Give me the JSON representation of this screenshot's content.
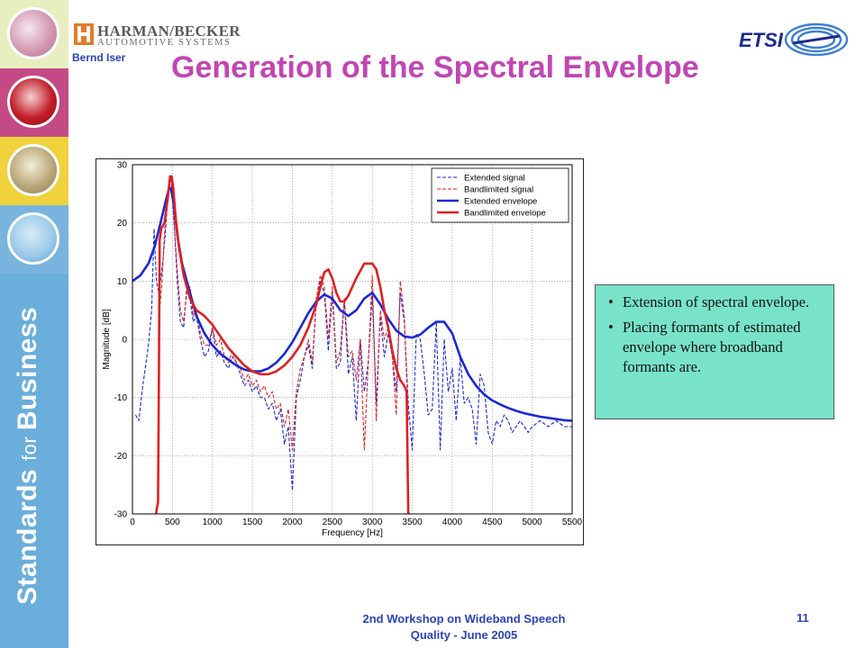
{
  "header": {
    "company_name": "HARMAN/BECKER",
    "company_sub": "AUTOMOTIVE SYSTEMS",
    "author": "Bernd Iser",
    "logo_letter": "H",
    "etsi_text": "ETSI"
  },
  "slide": {
    "title": "Generation of the Spectral Envelope",
    "sidebar_text_a": "Standards ",
    "sidebar_text_b": "for ",
    "sidebar_text_c": "Business"
  },
  "bullets": [
    "Extension of spectral envelope.",
    "Placing formants of estimated envelope where broadband formants are."
  ],
  "footer": {
    "line1": "2nd Workshop on Wideband Speech",
    "line2": "Quality - June 2005",
    "page_number": "11"
  },
  "colors": {
    "title": "#c146b3",
    "footer": "#2a43b8",
    "extended": "#1a28d4",
    "bandlimited": "#e02020",
    "textbox_bg": "#78e3c8"
  },
  "chart_data": {
    "type": "line",
    "title": "",
    "xlabel": "Frequency [Hz]",
    "ylabel": "Magnitude [dB]",
    "xlim": [
      0,
      5500
    ],
    "ylim": [
      -30,
      30
    ],
    "xticks": [
      0,
      500,
      1000,
      1500,
      2000,
      2500,
      3000,
      3500,
      4000,
      4500,
      5000,
      5500
    ],
    "yticks": [
      -30,
      -20,
      -10,
      0,
      10,
      20,
      30
    ],
    "grid": true,
    "legend_position": "top-right",
    "series": [
      {
        "name": "Extended signal",
        "style": "dashed",
        "color": "#1a28d4",
        "x": [
          40,
          80,
          120,
          160,
          200,
          240,
          270,
          300,
          330,
          370,
          410,
          450,
          480,
          500,
          530,
          560,
          600,
          640,
          680,
          720,
          760,
          800,
          850,
          900,
          950,
          1000,
          1050,
          1100,
          1150,
          1200,
          1250,
          1300,
          1350,
          1400,
          1450,
          1500,
          1550,
          1600,
          1650,
          1700,
          1750,
          1800,
          1850,
          1900,
          1950,
          2000,
          2050,
          2100,
          2150,
          2200,
          2250,
          2300,
          2350,
          2400,
          2450,
          2500,
          2550,
          2600,
          2650,
          2700,
          2750,
          2800,
          2850,
          2900,
          2950,
          3000,
          3050,
          3100,
          3150,
          3200,
          3250,
          3300,
          3350,
          3400,
          3450,
          3500,
          3550,
          3600,
          3650,
          3700,
          3750,
          3800,
          3850,
          3900,
          3950,
          4000,
          4050,
          4100,
          4150,
          4200,
          4250,
          4300,
          4350,
          4400,
          4450,
          4500,
          4550,
          4600,
          4650,
          4700,
          4750,
          4800,
          4850,
          4900,
          4950,
          5000,
          5100,
          5200,
          5300,
          5400,
          5500
        ],
        "y": [
          -13,
          -14,
          -9,
          -5,
          -1,
          5,
          19,
          10,
          8,
          12,
          18,
          26,
          28,
          24,
          18,
          10,
          3,
          2,
          9,
          7,
          3,
          4,
          0,
          -3,
          -2,
          2,
          -3,
          -2,
          -4,
          -5,
          -3,
          -4,
          -6,
          -8,
          -7,
          -9,
          -8,
          -10,
          -10,
          -12,
          -11,
          -14,
          -12,
          -18,
          -15,
          -26,
          -10,
          -7,
          -3,
          -1,
          -5,
          7,
          10,
          8,
          -2,
          8,
          -5,
          -4,
          7,
          -6,
          -3,
          -14,
          0,
          -9,
          -4,
          8,
          -11,
          4,
          -3,
          1,
          -3,
          -9,
          8,
          3,
          -11,
          -19,
          1,
          0,
          -6,
          -13,
          -12,
          3,
          -19,
          0,
          -9,
          -5,
          -14,
          -3,
          -11,
          -10,
          -12,
          -18,
          -6,
          -8,
          -16,
          -18,
          -14,
          -15,
          -13,
          -14,
          -16,
          -15,
          -14,
          -15,
          -16,
          -15,
          -14,
          -15,
          -14,
          -15,
          -15
        ]
      },
      {
        "name": "Bandlimited signal",
        "style": "dashed",
        "color": "#e02020",
        "x": [
          320,
          340,
          370,
          400,
          430,
          460,
          480,
          500,
          530,
          560,
          600,
          640,
          680,
          720,
          760,
          800,
          850,
          900,
          950,
          1000,
          1050,
          1100,
          1150,
          1200,
          1250,
          1300,
          1350,
          1400,
          1450,
          1500,
          1550,
          1600,
          1650,
          1700,
          1750,
          1800,
          1850,
          1900,
          1950,
          2000,
          2050,
          2100,
          2150,
          2200,
          2250,
          2300,
          2350,
          2400,
          2450,
          2500,
          2550,
          2600,
          2650,
          2700,
          2750,
          2800,
          2850,
          2900,
          2950,
          3000,
          3050,
          3100,
          3150,
          3200,
          3250,
          3300,
          3350,
          3400,
          3450
        ],
        "y": [
          -20,
          5,
          10,
          18,
          23,
          26,
          28,
          26,
          18,
          12,
          5,
          3,
          8,
          9,
          4,
          5,
          1,
          -1,
          -1,
          2,
          -1,
          0,
          -3,
          -4,
          -2,
          -4,
          -5,
          -7,
          -6,
          -8,
          -7,
          -9,
          -8,
          -10,
          -9,
          -12,
          -11,
          -15,
          -12,
          -19,
          -9,
          -5,
          -3,
          0,
          -4,
          7,
          11,
          9,
          0,
          9,
          -4,
          -2,
          7,
          -3,
          -2,
          -7,
          0,
          -19,
          -4,
          11,
          -14,
          5,
          0,
          2,
          -3,
          -13,
          10,
          4,
          -14
        ]
      },
      {
        "name": "Extended envelope",
        "style": "solid",
        "color": "#1a28d4",
        "x": [
          0,
          100,
          200,
          280,
          350,
          420,
          460,
          480,
          520,
          560,
          620,
          700,
          800,
          900,
          1000,
          1100,
          1200,
          1300,
          1400,
          1500,
          1600,
          1700,
          1800,
          1900,
          2000,
          2100,
          2200,
          2300,
          2400,
          2500,
          2600,
          2700,
          2800,
          2900,
          3000,
          3100,
          3200,
          3300,
          3400,
          3500,
          3600,
          3700,
          3800,
          3900,
          4000,
          4100,
          4200,
          4300,
          4400,
          4500,
          4600,
          4700,
          4800,
          4900,
          5000,
          5100,
          5200,
          5300,
          5400,
          5500
        ],
        "y": [
          10,
          11,
          13,
          16,
          20,
          24,
          26,
          26,
          23,
          18,
          13,
          9,
          4,
          1,
          -1,
          -2.5,
          -3.5,
          -4.5,
          -5.2,
          -5.5,
          -5.5,
          -5,
          -4,
          -2.5,
          -0.5,
          2,
          4.5,
          6.5,
          7.7,
          7,
          5,
          4,
          5,
          7,
          8,
          6,
          3.5,
          1.5,
          0.5,
          0.3,
          0.8,
          2,
          3,
          3,
          1,
          -3,
          -6,
          -8,
          -9.5,
          -10.5,
          -11.2,
          -11.8,
          -12.3,
          -12.7,
          -13,
          -13.3,
          -13.5,
          -13.7,
          -13.9,
          -14
        ]
      },
      {
        "name": "Bandlimited envelope",
        "style": "solid",
        "color": "#e02020",
        "x": [
          295,
          305,
          320,
          330,
          340,
          360,
          400,
          440,
          470,
          490,
          510,
          540,
          580,
          640,
          720,
          800,
          900,
          1000,
          1100,
          1200,
          1300,
          1400,
          1500,
          1600,
          1700,
          1800,
          1900,
          2000,
          2100,
          2200,
          2300,
          2350,
          2400,
          2450,
          2500,
          2550,
          2600,
          2650,
          2700,
          2800,
          2900,
          3000,
          3050,
          3100,
          3150,
          3200,
          3250,
          3300,
          3350,
          3400,
          3430,
          3450,
          3460,
          3470
        ],
        "y": [
          -30,
          -29,
          -28,
          -8,
          17,
          19,
          20,
          24,
          28,
          28,
          26,
          21,
          16,
          11,
          7,
          5,
          4,
          2.5,
          0.5,
          -1.5,
          -3,
          -4.5,
          -5.5,
          -6,
          -6,
          -5.5,
          -4.5,
          -3,
          -1,
          2,
          6,
          9,
          11.5,
          12,
          10.5,
          8,
          6.5,
          6.5,
          7.5,
          10.5,
          13,
          13,
          12,
          9,
          5,
          2,
          -2,
          -5,
          -7,
          -8,
          -9,
          -30,
          -30,
          -30
        ]
      }
    ]
  }
}
